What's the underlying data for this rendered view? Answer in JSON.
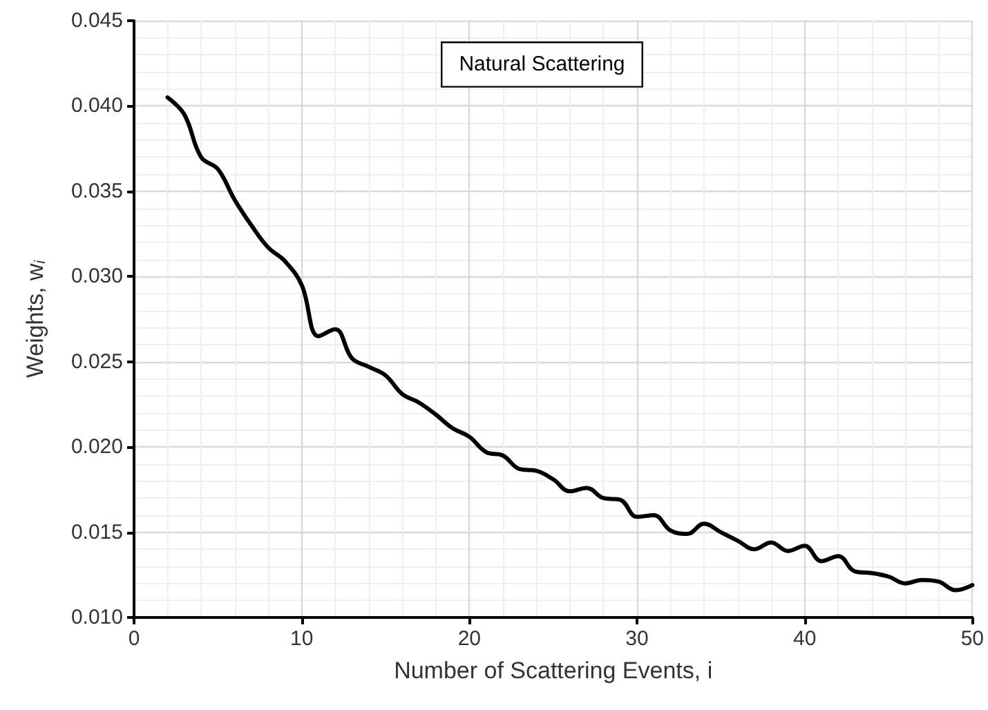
{
  "chart_data": {
    "type": "line",
    "xlabel": "Number of Scattering Events, i",
    "ylabel": "Weights, w$_{i}$",
    "annotations": [
      "Natural Scattering"
    ],
    "x": [
      2,
      3,
      4,
      5,
      6,
      7,
      8,
      9,
      10,
      11,
      12,
      13,
      14,
      15,
      16,
      17,
      18,
      19,
      20,
      21,
      22,
      23,
      24,
      25,
      26,
      27,
      28,
      29,
      30,
      31,
      32,
      33,
      34,
      35,
      36,
      37,
      38,
      39,
      40,
      41,
      42,
      43,
      44,
      45,
      46,
      47,
      48,
      49,
      50
    ],
    "series": [
      {
        "color": "#000000",
        "values": [
          0.0405,
          0.0395,
          0.037,
          0.0363,
          0.0345,
          0.033,
          0.0317,
          0.0309,
          0.0295,
          0.0265,
          0.0269,
          0.0252,
          0.0247,
          0.0242,
          0.0231,
          0.0226,
          0.0219,
          0.0211,
          0.0206,
          0.0197,
          0.0195,
          0.0187,
          0.0186,
          0.0181,
          0.0174,
          0.0176,
          0.017,
          0.0169,
          0.0159,
          0.016,
          0.0151,
          0.0149,
          0.0155,
          0.015,
          0.0145,
          0.014,
          0.0144,
          0.0139,
          0.0142,
          0.0133,
          0.0136,
          0.0127,
          0.0126,
          0.0124,
          0.012,
          0.0122,
          0.0121,
          0.0116,
          0.0119
        ]
      }
    ],
    "xlim": [
      0,
      50
    ],
    "xticks": [
      0,
      10,
      20,
      30,
      40,
      50
    ],
    "ylim": [
      0.01,
      0.045
    ],
    "yticks": [
      {
        "value": 0.01,
        "label": "0.010"
      },
      {
        "value": 0.015,
        "label": "0.015"
      },
      {
        "value": 0.02,
        "label": "0.020"
      },
      {
        "value": 0.025,
        "label": "0.025"
      },
      {
        "value": 0.03,
        "label": "0.030"
      },
      {
        "value": 0.035,
        "label": "0.035"
      },
      {
        "value": 0.04,
        "label": "0.040"
      },
      {
        "value": 0.045,
        "label": "0.045"
      }
    ],
    "grid": true,
    "marker": "none",
    "line_style": "solid"
  }
}
